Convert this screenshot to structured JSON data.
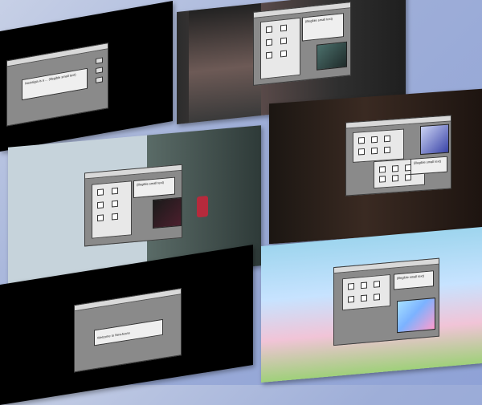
{
  "panels": [
    {
      "id": "p1",
      "dialog_text": "Nostalgia is a ... (illegible small text)"
    },
    {
      "id": "p2",
      "dialog_text": "(illegible small text)"
    },
    {
      "id": "p3",
      "dialog_text": "(illegible small text)"
    },
    {
      "id": "p4",
      "dialog_text": "(illegible small text)"
    },
    {
      "id": "p5",
      "dialog_text": "Welcome to NewJeans"
    },
    {
      "id": "p6",
      "dialog_text": "(illegible small text)"
    }
  ]
}
